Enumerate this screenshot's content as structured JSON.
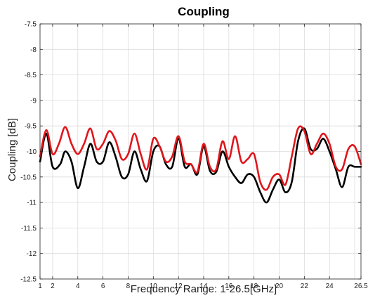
{
  "chart_data": {
    "type": "line",
    "title": "Coupling",
    "xlabel": "Frequency Range: 1-26.5[GHz]",
    "ylabel": "Coupling [dB]",
    "xlim": [
      1,
      26.5
    ],
    "ylim": [
      -12.5,
      -7.5
    ],
    "xticks": [
      1,
      2,
      4,
      6,
      8,
      10,
      12,
      14,
      16,
      18,
      20,
      22,
      24,
      26.5
    ],
    "yticks": [
      -7.5,
      -8,
      -8.5,
      -9,
      -9.5,
      -10,
      -10.5,
      -11,
      -11.5,
      -12,
      -12.5
    ],
    "grid": true,
    "legend": "none",
    "series": [
      {
        "color": "#000000",
        "x": [
          1,
          1.5,
          2,
          2.6,
          3,
          3.5,
          4,
          4.5,
          5,
          5.5,
          6,
          6.5,
          7,
          7.5,
          8,
          8.5,
          9,
          9.5,
          10,
          10.5,
          11,
          11.5,
          12,
          12.5,
          13,
          13.5,
          14,
          14.5,
          15,
          15.5,
          16,
          16.5,
          17,
          17.5,
          18,
          18.5,
          19,
          19.5,
          20,
          20.5,
          21,
          21.5,
          22,
          22.5,
          23,
          23.5,
          24,
          24.5,
          25,
          25.5,
          26,
          26.5
        ],
        "y": [
          -10.2,
          -9.65,
          -10.3,
          -10.25,
          -10.0,
          -10.2,
          -10.72,
          -10.3,
          -9.85,
          -10.2,
          -10.2,
          -9.82,
          -10.1,
          -10.5,
          -10.45,
          -10.0,
          -10.35,
          -10.58,
          -10.0,
          -9.9,
          -10.25,
          -10.3,
          -9.75,
          -10.3,
          -10.25,
          -10.45,
          -9.9,
          -10.38,
          -10.4,
          -10.0,
          -10.3,
          -10.5,
          -10.62,
          -10.45,
          -10.5,
          -10.8,
          -11.0,
          -10.75,
          -10.55,
          -10.8,
          -10.6,
          -9.8,
          -9.55,
          -9.95,
          -9.95,
          -9.75,
          -10.0,
          -10.35,
          -10.7,
          -10.3,
          -10.3,
          -10.3
        ]
      },
      {
        "color": "#e0161b",
        "x": [
          1,
          1.5,
          2,
          2.5,
          3,
          3.5,
          4,
          4.5,
          5,
          5.5,
          6,
          6.5,
          7,
          7.5,
          8,
          8.5,
          9,
          9.5,
          10,
          10.5,
          11,
          11.5,
          12,
          12.5,
          13,
          13.5,
          14,
          14.5,
          15,
          15.5,
          16,
          16.5,
          17,
          17.5,
          18,
          18.5,
          19,
          19.5,
          20,
          20.5,
          21,
          21.5,
          22,
          22.5,
          23,
          23.5,
          24,
          24.5,
          25,
          25.5,
          26,
          26.5
        ],
        "y": [
          -10.1,
          -9.58,
          -10.05,
          -9.85,
          -9.52,
          -9.85,
          -10.05,
          -9.85,
          -9.55,
          -9.95,
          -9.85,
          -9.6,
          -9.78,
          -10.15,
          -10.05,
          -9.65,
          -10.05,
          -10.35,
          -9.75,
          -9.9,
          -10.2,
          -10.1,
          -9.7,
          -10.2,
          -10.25,
          -10.4,
          -9.85,
          -10.3,
          -10.35,
          -9.8,
          -10.15,
          -9.7,
          -10.2,
          -10.15,
          -10.05,
          -10.6,
          -10.75,
          -10.5,
          -10.45,
          -10.65,
          -10.1,
          -9.55,
          -9.6,
          -10.05,
          -9.85,
          -9.65,
          -9.85,
          -10.3,
          -10.35,
          -9.95,
          -9.9,
          -10.25
        ]
      }
    ]
  }
}
